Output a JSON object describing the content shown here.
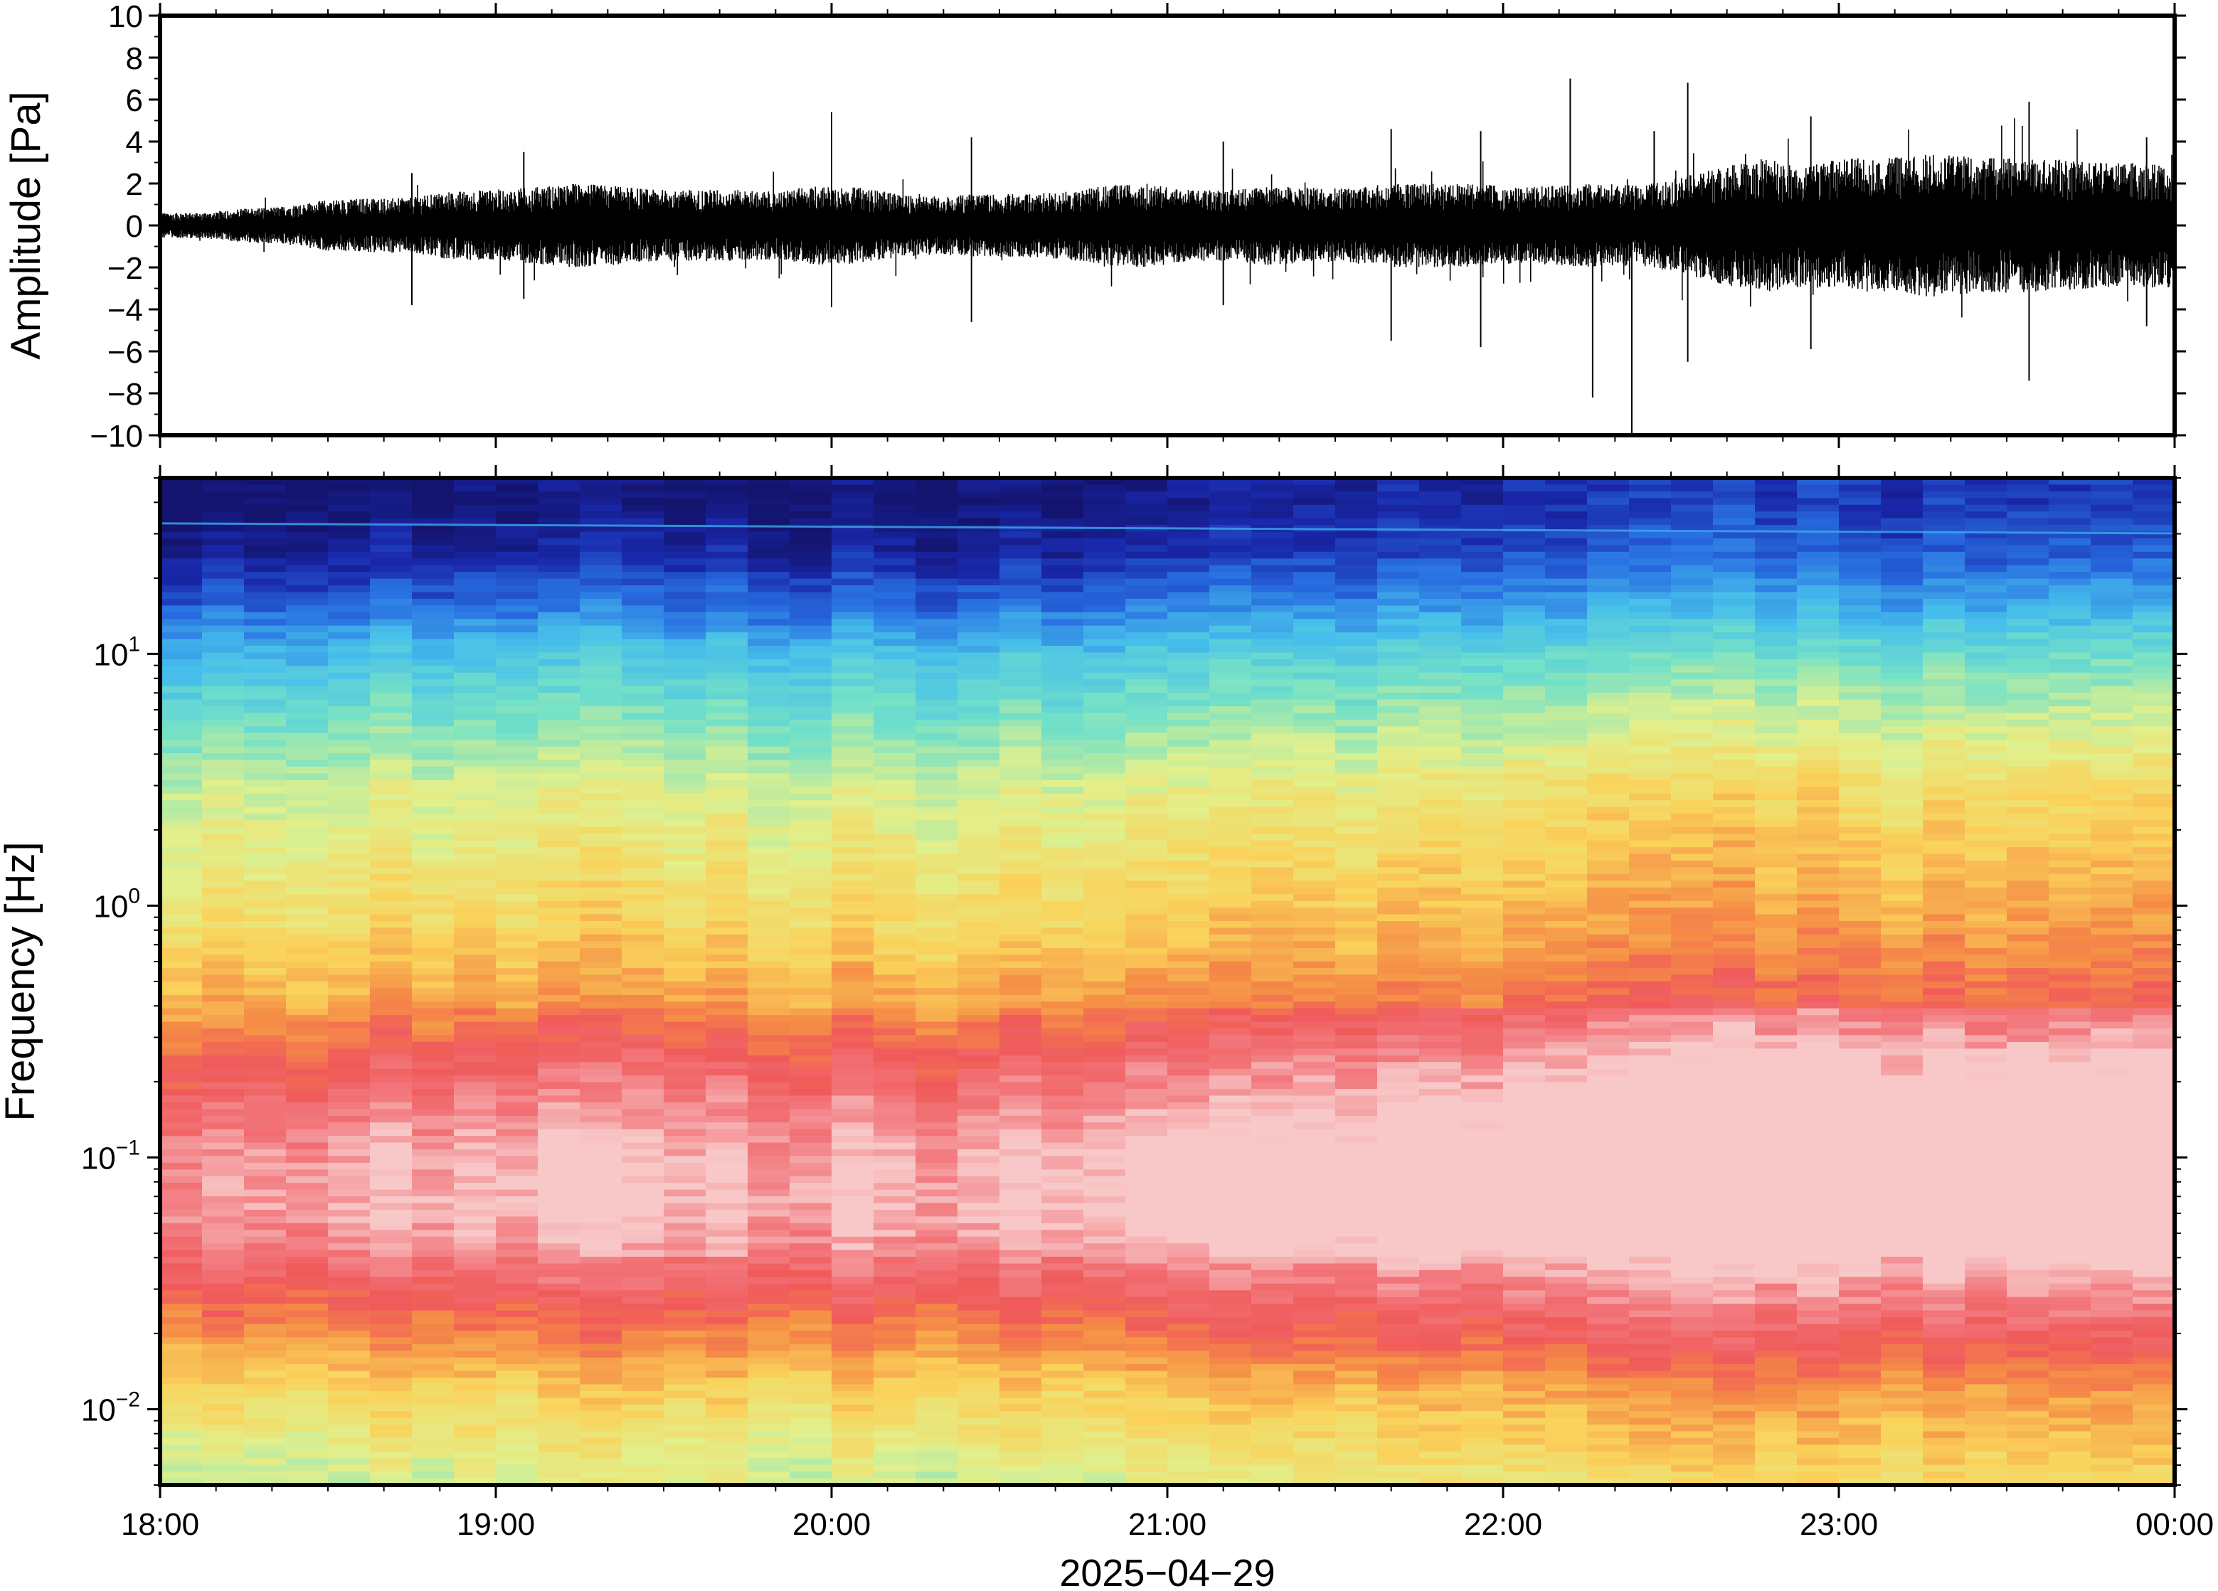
{
  "chart_data": [
    {
      "type": "line",
      "ylabel": "Amplitude [Pa]",
      "ylim": [
        -10,
        10
      ],
      "yticks": [
        10,
        8,
        6,
        4,
        2,
        0,
        -2,
        -4,
        -6,
        -8,
        -10
      ],
      "yticklabels": [
        "10",
        "8",
        "6",
        "4",
        "2",
        "0",
        "−2",
        "−4",
        "−6",
        "−8",
        "−10"
      ],
      "x_range": [
        "2025-04-29T18:00",
        "2025-04-30T00:00"
      ],
      "grid": false,
      "series": [
        {
          "color": "#000000",
          "envelope_max": [
            0.6,
            0.6,
            0.8,
            0.9,
            1.2,
            1.3,
            1.3,
            1.6,
            1.7,
            1.8,
            2.0,
            1.9,
            1.7,
            1.7,
            1.7,
            1.6,
            1.9,
            1.8,
            1.5,
            1.4,
            1.5,
            1.5,
            1.6,
            1.9,
            2.0,
            1.7,
            1.7,
            1.9,
            1.8,
            1.8,
            2.0,
            2.0,
            2.0,
            1.8,
            1.9,
            2.0,
            1.9,
            2.3,
            2.8,
            3.2,
            2.9,
            3.2,
            3.2,
            3.4,
            3.3,
            3.2,
            3.2,
            3.0,
            3.0,
            3.0
          ],
          "envelope_min": [
            -0.6,
            -0.6,
            -0.8,
            -0.9,
            -1.2,
            -1.3,
            -1.3,
            -1.6,
            -1.7,
            -1.8,
            -2.0,
            -1.9,
            -1.7,
            -1.7,
            -1.7,
            -1.6,
            -1.9,
            -1.8,
            -1.5,
            -1.4,
            -1.5,
            -1.5,
            -1.6,
            -1.9,
            -2.0,
            -1.7,
            -1.7,
            -1.9,
            -1.8,
            -1.8,
            -2.0,
            -2.0,
            -2.0,
            -1.8,
            -1.9,
            -2.0,
            -1.9,
            -2.3,
            -2.8,
            -3.2,
            -2.9,
            -3.2,
            -3.2,
            -3.4,
            -3.3,
            -3.2,
            -3.2,
            -3.0,
            -3.0,
            -3.0
          ],
          "spikes": [
            {
              "x": "18:45",
              "y": 2.5
            },
            {
              "x": "18:45",
              "y": -3.8
            },
            {
              "x": "19:05",
              "y": 3.5
            },
            {
              "x": "19:05",
              "y": -3.5
            },
            {
              "x": "20:00",
              "y": 5.4
            },
            {
              "x": "20:00",
              "y": -3.9
            },
            {
              "x": "20:25",
              "y": -4.6
            },
            {
              "x": "20:25",
              "y": 4.2
            },
            {
              "x": "21:10",
              "y": 4.0
            },
            {
              "x": "21:10",
              "y": -3.8
            },
            {
              "x": "21:40",
              "y": 4.6
            },
            {
              "x": "21:40",
              "y": -5.5
            },
            {
              "x": "21:56",
              "y": -5.8
            },
            {
              "x": "21:56",
              "y": 4.5
            },
            {
              "x": "22:12",
              "y": 7.0
            },
            {
              "x": "22:16",
              "y": -8.2
            },
            {
              "x": "22:23",
              "y": -10.0
            },
            {
              "x": "22:27",
              "y": 4.5
            },
            {
              "x": "22:33",
              "y": 6.8
            },
            {
              "x": "22:33",
              "y": -6.5
            },
            {
              "x": "22:55",
              "y": 5.2
            },
            {
              "x": "22:55",
              "y": -5.9
            },
            {
              "x": "23:34",
              "y": 5.9
            },
            {
              "x": "23:34",
              "y": -7.4
            },
            {
              "x": "23:55",
              "y": 4.2
            },
            {
              "x": "23:55",
              "y": -4.8
            }
          ]
        }
      ]
    },
    {
      "type": "heatmap",
      "ylabel": "Frequency [Hz]",
      "xlabel": "2025−04−29",
      "y_scale": "log",
      "ylim": [
        0.005,
        50
      ],
      "yticks": [
        {
          "mantissa": "10",
          "exponent": "1",
          "value": 10
        },
        {
          "mantissa": "10",
          "exponent": "0",
          "value": 1
        },
        {
          "mantissa": "10",
          "exponent": "−1",
          "value": 0.1
        },
        {
          "mantissa": "10",
          "exponent": "−2",
          "value": 0.01
        }
      ],
      "xticks": [
        "18:00",
        "19:00",
        "20:00",
        "21:00",
        "22:00",
        "23:00",
        "00:00"
      ],
      "colormap": "rainbow (blue = low power, red = high power, pale red = highest)",
      "colors": {
        "low": "#1a2da0",
        "mid": "#e8ef8a",
        "high": "#f05a5a",
        "peak": "#f7c6c6"
      },
      "time_columns": 48,
      "power_profile_by_frequency": [
        {
          "frequency_hz": 40,
          "level": 0.0
        },
        {
          "frequency_hz": 25,
          "level": 0.05
        },
        {
          "frequency_hz": 15,
          "level": 0.18
        },
        {
          "frequency_hz": 10,
          "level": 0.3
        },
        {
          "frequency_hz": 6,
          "level": 0.4
        },
        {
          "frequency_hz": 3,
          "level": 0.52
        },
        {
          "frequency_hz": 1.5,
          "level": 0.58
        },
        {
          "frequency_hz": 0.8,
          "level": 0.63
        },
        {
          "frequency_hz": 0.4,
          "level": 0.72
        },
        {
          "frequency_hz": 0.25,
          "level": 0.82
        },
        {
          "frequency_hz": 0.15,
          "level": 0.9
        },
        {
          "frequency_hz": 0.1,
          "level": 0.95
        },
        {
          "frequency_hz": 0.06,
          "level": 0.96
        },
        {
          "frequency_hz": 0.035,
          "level": 0.88
        },
        {
          "frequency_hz": 0.02,
          "level": 0.76
        },
        {
          "frequency_hz": 0.012,
          "level": 0.64
        },
        {
          "frequency_hz": 0.007,
          "level": 0.56
        },
        {
          "frequency_hz": 0.005,
          "level": 0.52
        }
      ],
      "time_trend": [
        0.0,
        0.0,
        0.01,
        0.01,
        0.02,
        0.02,
        0.02,
        0.03,
        0.03,
        0.04,
        0.04,
        0.04,
        0.03,
        0.03,
        0.02,
        0.02,
        0.03,
        0.03,
        0.02,
        0.03,
        0.04,
        0.04,
        0.05,
        0.06,
        0.06,
        0.06,
        0.06,
        0.07,
        0.07,
        0.07,
        0.08,
        0.08,
        0.08,
        0.09,
        0.1,
        0.11,
        0.12,
        0.12,
        0.12,
        0.12,
        0.11,
        0.11,
        0.11,
        0.1,
        0.1,
        0.11,
        0.11,
        0.11
      ],
      "narrow_line": {
        "frequency_hz": 33,
        "note": "thin cyan line near top"
      }
    }
  ]
}
